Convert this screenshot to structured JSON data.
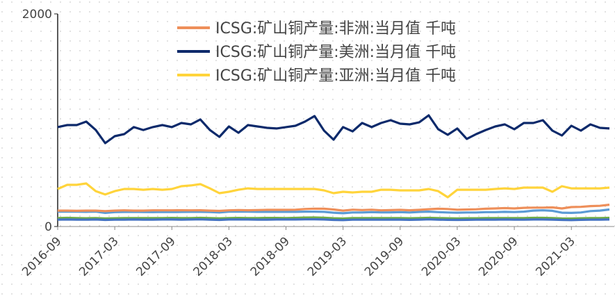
{
  "chart_data": {
    "type": "line",
    "categories": [
      "2016-09",
      null,
      null,
      null,
      null,
      null,
      "2017-03",
      null,
      null,
      null,
      null,
      null,
      "2017-09",
      null,
      null,
      null,
      null,
      null,
      "2018-03",
      null,
      null,
      null,
      null,
      null,
      "2018-09",
      null,
      null,
      null,
      null,
      null,
      "2019-03",
      null,
      null,
      null,
      null,
      null,
      "2019-09",
      null,
      null,
      null,
      null,
      null,
      "2020-03",
      null,
      null,
      null,
      null,
      null,
      "2020-09",
      null,
      null,
      null,
      null,
      null,
      "2021-03",
      null,
      null,
      null,
      null
    ],
    "ylim": [
      0,
      2000
    ],
    "yticks": [
      0,
      2000
    ],
    "legend": "top-right",
    "series": [
      {
        "color": "#5b9bd5",
        "values": [
          140,
          140,
          140,
          138,
          140,
          128,
          135,
          137,
          138,
          136,
          135,
          137,
          136,
          137,
          138,
          138,
          136,
          132,
          140,
          140,
          140,
          138,
          138,
          138,
          138,
          138,
          140,
          140,
          138,
          130,
          125,
          132,
          132,
          135,
          133,
          133,
          135,
          132,
          137,
          140,
          135,
          132,
          130,
          132,
          132,
          135,
          135,
          138,
          136,
          140,
          150,
          152,
          148,
          130,
          128,
          132,
          145,
          150,
          160
        ]
      },
      {
        "color": "#70ad47",
        "values": [
          80,
          82,
          80,
          78,
          80,
          76,
          78,
          80,
          80,
          79,
          80,
          80,
          81,
          80,
          80,
          82,
          80,
          77,
          80,
          81,
          80,
          80,
          81,
          81,
          80,
          82,
          84,
          85,
          83,
          78,
          75,
          79,
          80,
          80,
          79,
          80,
          80,
          78,
          80,
          82,
          80,
          78,
          76,
          78,
          78,
          79,
          80,
          80,
          79,
          80,
          82,
          82,
          80,
          76,
          75,
          78,
          80,
          80,
          82
        ]
      },
      {
        "color": "#4472c4",
        "values": [
          65,
          66,
          65,
          64,
          66,
          62,
          64,
          65,
          66,
          65,
          65,
          66,
          66,
          65,
          66,
          67,
          65,
          62,
          66,
          66,
          66,
          65,
          65,
          66,
          66,
          66,
          67,
          68,
          66,
          62,
          60,
          64,
          64,
          65,
          64,
          65,
          65,
          63,
          65,
          67,
          65,
          63,
          62,
          63,
          64,
          65,
          65,
          66,
          65,
          64,
          66,
          66,
          65,
          62,
          60,
          63,
          64,
          65,
          66
        ]
      },
      {
        "name": "ICSG:矿山铜产量:非洲:当月值 千吨",
        "color": "#ee8f5a",
        "values": [
          150,
          150,
          148,
          150,
          150,
          145,
          150,
          152,
          150,
          150,
          152,
          152,
          152,
          153,
          152,
          153,
          150,
          147,
          152,
          155,
          153,
          155,
          157,
          157,
          157,
          158,
          165,
          168,
          167,
          160,
          150,
          158,
          155,
          158,
          152,
          154,
          157,
          153,
          157,
          163,
          167,
          165,
          158,
          160,
          162,
          167,
          170,
          173,
          170,
          176,
          178,
          178,
          180,
          170,
          183,
          185,
          192,
          195,
          205
        ]
      },
      {
        "name": "ICSG:矿山铜产量:美洲:当月值 千吨",
        "color": "#0d2a6b",
        "values": [
          935,
          954,
          954,
          987,
          908,
          784,
          850,
          869,
          935,
          908,
          935,
          954,
          935,
          974,
          961,
          1007,
          908,
          843,
          941,
          882,
          954,
          941,
          928,
          922,
          935,
          948,
          987,
          1039,
          902,
          817,
          935,
          895,
          974,
          935,
          974,
          1000,
          967,
          961,
          980,
          1046,
          915,
          863,
          922,
          824,
          869,
          908,
          941,
          961,
          915,
          974,
          974,
          1000,
          902,
          856,
          948,
          902,
          961,
          928,
          922
        ]
      },
      {
        "name": "ICSG:矿山铜产量:亚洲:当月值 千吨",
        "color": "#ffd43b",
        "values": [
          353,
          392,
          392,
          405,
          333,
          301,
          333,
          353,
          353,
          346,
          353,
          346,
          353,
          379,
          386,
          399,
          359,
          314,
          327,
          346,
          359,
          353,
          353,
          353,
          353,
          353,
          353,
          353,
          340,
          314,
          327,
          320,
          327,
          327,
          346,
          346,
          340,
          340,
          340,
          353,
          333,
          275,
          346,
          346,
          346,
          346,
          353,
          359,
          353,
          366,
          366,
          366,
          327,
          379,
          359,
          359,
          359,
          359,
          366
        ]
      }
    ]
  }
}
